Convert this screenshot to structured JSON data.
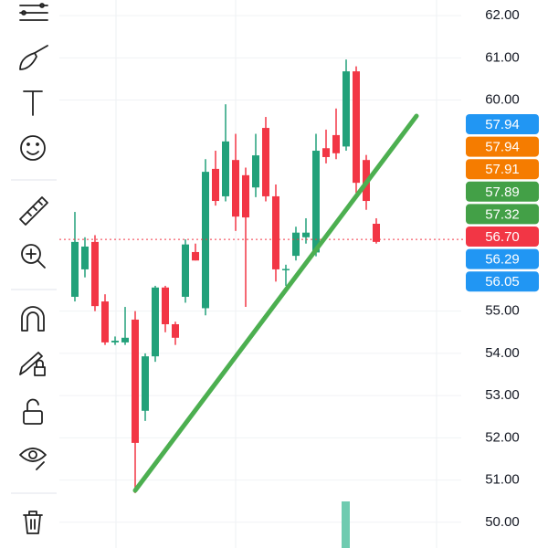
{
  "chart_data": {
    "type": "candlestick",
    "open": [
      55.34,
      55.99,
      56.64,
      55.23,
      54.26,
      54.26,
      54.8,
      52.64,
      53.93,
      55.56,
      54.69,
      55.34,
      56.4,
      55.07,
      58.37,
      57.72,
      58.58,
      58.22,
      57.93,
      59.34,
      57.72,
      55.97,
      56.31,
      56.75,
      56.39,
      58.86,
      59.17,
      58.9,
      60.68,
      58.58,
      57.07
    ],
    "high": [
      57.35,
      56.75,
      56.8,
      55.4,
      54.4,
      55.1,
      55.0,
      54.0,
      55.6,
      55.6,
      54.75,
      56.7,
      56.6,
      58.6,
      58.8,
      59.9,
      59.2,
      58.4,
      59.2,
      59.6,
      58.0,
      56.1,
      57.0,
      57.2,
      59.2,
      59.3,
      59.8,
      60.96,
      60.8,
      58.7,
      57.2
    ],
    "low": [
      55.23,
      55.8,
      55.0,
      54.2,
      54.2,
      54.2,
      50.69,
      52.4,
      53.8,
      54.5,
      54.2,
      55.2,
      56.2,
      54.9,
      57.5,
      57.6,
      56.9,
      55.1,
      57.7,
      57.6,
      55.7,
      55.6,
      56.2,
      56.6,
      56.3,
      58.5,
      58.6,
      58.8,
      57.8,
      57.4,
      56.6
    ],
    "close": [
      56.64,
      56.53,
      55.12,
      54.26,
      54.3,
      54.37,
      51.88,
      53.93,
      55.56,
      54.69,
      54.37,
      56.58,
      56.2,
      58.3,
      57.61,
      59.02,
      57.24,
      57.22,
      58.69,
      57.72,
      55.99,
      56.0,
      56.86,
      56.86,
      58.8,
      58.65,
      58.74,
      60.68,
      58.04,
      57.61,
      56.64
    ],
    "up_color": "#22a17a",
    "down_color": "#f23645",
    "ylim": [
      49.39,
      62.37
    ],
    "yticks": [
      {
        "value": 62,
        "label": "62.00"
      },
      {
        "value": 61,
        "label": "61.00"
      },
      {
        "value": 60,
        "label": "60.00"
      },
      {
        "value": 55,
        "label": "55.00"
      },
      {
        "value": 54,
        "label": "54.00"
      },
      {
        "value": 53,
        "label": "53.00"
      },
      {
        "value": 52,
        "label": "52.00"
      },
      {
        "value": 51,
        "label": "51.00"
      },
      {
        "value": 50,
        "label": "50.00"
      }
    ],
    "price_tags": [
      {
        "value": 57.94,
        "label": "57.94",
        "color": "#2196f3"
      },
      {
        "value": 57.94,
        "label": "57.94",
        "color": "#f57c00"
      },
      {
        "value": 57.91,
        "label": "57.91",
        "color": "#f57c00"
      },
      {
        "value": 57.89,
        "label": "57.89",
        "color": "#43a047"
      },
      {
        "value": 57.32,
        "label": "57.32",
        "color": "#43a047"
      },
      {
        "value": 56.7,
        "label": "56.70",
        "color": "#f23645"
      },
      {
        "value": 56.29,
        "label": "56.29",
        "color": "#2196f3"
      },
      {
        "value": 56.05,
        "label": "56.05",
        "color": "#2196f3"
      }
    ]
  }
}
